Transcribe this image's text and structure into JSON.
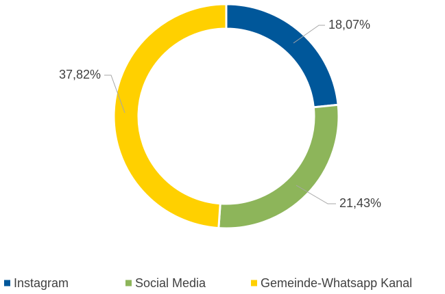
{
  "chart_data": {
    "type": "donut",
    "categories": [
      "Instagram",
      "Social Media",
      "Gemeinde-Whatsapp Kanal"
    ],
    "values": [
      18.07,
      21.43,
      37.82
    ],
    "value_labels": [
      "18,07%",
      "21,43%",
      "37,82%"
    ],
    "colors": [
      "#00579a",
      "#8db55a",
      "#ffd000"
    ],
    "legend": "bottom"
  }
}
